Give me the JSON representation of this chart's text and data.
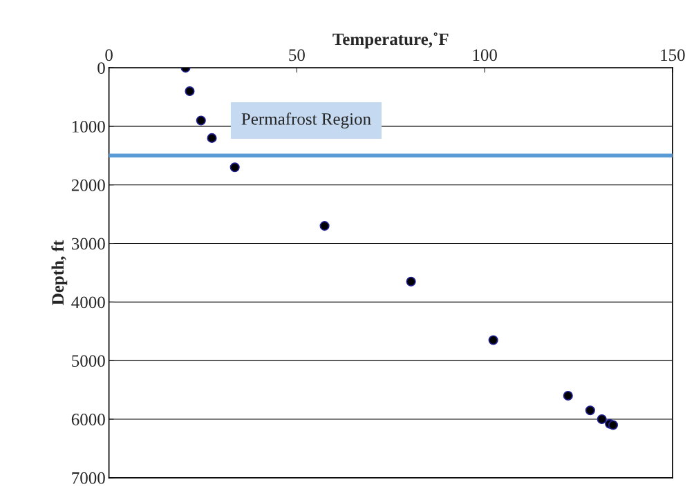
{
  "chart_data": {
    "type": "scatter",
    "xlabel": "Temperature,˚F",
    "ylabel": "Depth, ft",
    "x": [
      20.4,
      21.5,
      24.5,
      27.4,
      33.5,
      57.4,
      80.4,
      102.3,
      122.2,
      128.1,
      131.2,
      133.3,
      134.2
    ],
    "values": [
      0,
      400,
      900,
      1200,
      1700,
      2700,
      3650,
      4650,
      5600,
      5850,
      6000,
      6080,
      6100
    ],
    "color": "#000000",
    "marker": "circle",
    "xlim": [
      0,
      150
    ],
    "xticks": [
      0,
      50,
      100,
      150
    ],
    "ylim": [
      7000,
      0
    ],
    "yticks": [
      0,
      1000,
      2000,
      3000,
      4000,
      5000,
      6000,
      7000
    ],
    "grid": "y",
    "ref_lines": [
      {
        "axis": "y",
        "value": 1500,
        "label": "Permafrost Region",
        "color": "#5b9bd5",
        "line_style": "solid"
      }
    ]
  }
}
